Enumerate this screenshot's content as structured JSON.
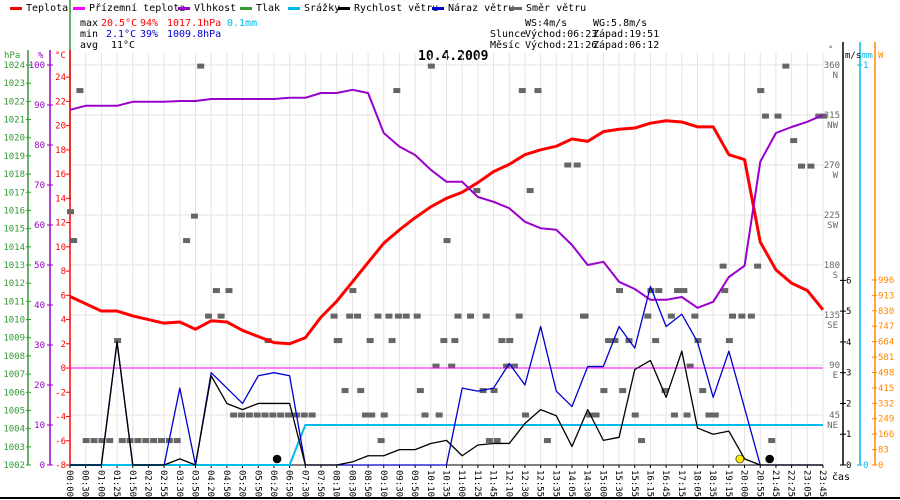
{
  "legend": [
    {
      "label": "Teplota",
      "color": "#ff0000"
    },
    {
      "label": "Přízemní teplota",
      "color": "#ff00ff"
    },
    {
      "label": "Vlhkost",
      "color": "#9900cc"
    },
    {
      "label": "Tlak",
      "color": "#339933"
    },
    {
      "label": "Srážky",
      "color": "#00bbee"
    },
    {
      "label": "Rychlost větru",
      "color": "#000000"
    },
    {
      "label": "Náraz větru",
      "color": "#0000cc"
    },
    {
      "label": "Směr větru",
      "color": "#666666"
    }
  ],
  "stats": {
    "max": {
      "label": "max",
      "temp": "20.5°C",
      "hum": "94%",
      "press": "1017.1hPa",
      "rain": "0.1mm"
    },
    "min": {
      "label": "min",
      "temp": "2.1°C",
      "hum": "39%",
      "press": "1009.8hPa"
    },
    "avg": {
      "label": "avg",
      "temp": "11°C"
    }
  },
  "info": {
    "ws": "WS:4m/s",
    "wg": "WG:5.8m/s",
    "sun_label": "Slunce",
    "sun_rise": "Východ:06:23",
    "sun_set": "Západ:19:51",
    "moon_label": "Měsíc",
    "moon_rise": "Východ:21:26",
    "moon_set": "Západ:06:12"
  },
  "chart_data": {
    "type": "line",
    "title": "10.4.2009",
    "xlabel": "čas",
    "x": [
      "00:00",
      "00:30",
      "01:00",
      "01:25",
      "01:50",
      "02:20",
      "02:55",
      "03:30",
      "03:50",
      "04:20",
      "04:50",
      "05:20",
      "05:50",
      "06:20",
      "06:50",
      "07:30",
      "07:50",
      "08:10",
      "08:30",
      "08:50",
      "09:10",
      "09:30",
      "09:50",
      "10:10",
      "10:35",
      "11:00",
      "11:25",
      "11:45",
      "12:10",
      "12:30",
      "12:55",
      "13:35",
      "14:05",
      "14:30",
      "15:00",
      "15:30",
      "15:55",
      "16:15",
      "16:45",
      "17:15",
      "18:05",
      "18:35",
      "19:15",
      "20:00",
      "20:55",
      "21:45",
      "22:25",
      "23:05",
      "23:45"
    ],
    "axes": {
      "hPa": {
        "unit": "hPa",
        "range": [
          1002,
          1024
        ],
        "ticks": [
          1002,
          1003,
          1004,
          1005,
          1006,
          1007,
          1008,
          1009,
          1010,
          1011,
          1012,
          1013,
          1014,
          1015,
          1016,
          1017,
          1018,
          1019,
          1020,
          1021,
          1022,
          1023,
          1024
        ]
      },
      "pct": {
        "unit": "%",
        "range": [
          0,
          100
        ],
        "ticks": [
          0,
          10,
          20,
          30,
          40,
          50,
          60,
          70,
          80,
          90,
          100
        ]
      },
      "temp": {
        "unit": "°C",
        "range": [
          -8,
          25
        ],
        "ticks": [
          -8,
          -6,
          -4,
          -2,
          0,
          2,
          4,
          6,
          8,
          10,
          12,
          14,
          16,
          18,
          20,
          22,
          24
        ]
      },
      "dir": {
        "unit": "°",
        "range": [
          0,
          360
        ],
        "ticks": [
          {
            "v": 360,
            "l": "N"
          },
          {
            "v": 315,
            "l": "NW"
          },
          {
            "v": 270,
            "l": "W"
          },
          {
            "v": 225,
            "l": "SW"
          },
          {
            "v": 180,
            "l": "S"
          },
          {
            "v": 135,
            "l": "SE"
          },
          {
            "v": 90,
            "l": "E"
          },
          {
            "v": 45,
            "l": "NE"
          }
        ]
      },
      "ms": {
        "unit": "m/s",
        "range": [
          0,
          13
        ],
        "ticks": [
          0,
          1,
          2,
          3,
          4,
          5,
          6
        ]
      },
      "mm": {
        "unit": "mm",
        "range": [
          0,
          1
        ],
        "ticks": [
          0,
          1
        ]
      },
      "W": {
        "unit": "W",
        "range": [
          0,
          2153
        ],
        "ticks": [
          0,
          83,
          166,
          249,
          332,
          415,
          498,
          581,
          664,
          747,
          830,
          913,
          996
        ]
      }
    },
    "series": [
      {
        "name": "Teplota",
        "axis": "temp",
        "color": "#ff0000",
        "width": 3,
        "values": [
          5.9,
          5.3,
          4.7,
          4.7,
          4.3,
          4.0,
          3.7,
          3.8,
          3.2,
          3.9,
          3.8,
          3.1,
          2.6,
          2.1,
          2.0,
          2.5,
          4.2,
          5.5,
          7.1,
          8.7,
          10.3,
          11.4,
          12.4,
          13.3,
          14.0,
          14.5,
          15.3,
          16.2,
          16.8,
          17.6,
          18.0,
          18.3,
          18.9,
          18.7,
          19.5,
          19.7,
          19.8,
          20.2,
          20.4,
          20.3,
          19.9,
          19.9,
          17.6,
          17.2,
          10.4,
          8.1,
          7.0,
          6.4,
          4.8
        ]
      },
      {
        "name": "Přízemní teplota",
        "axis": "temp",
        "color": "#ff00ff",
        "width": 1,
        "values": [
          0,
          0,
          0,
          0,
          0,
          0,
          0,
          0,
          0,
          0,
          0,
          0,
          0,
          0,
          0,
          0,
          0,
          0,
          0,
          0,
          0,
          0,
          0,
          0,
          0,
          0,
          0,
          0,
          0,
          0,
          0,
          0,
          0,
          0,
          0,
          0,
          0,
          0,
          0,
          0,
          0,
          0,
          0,
          0,
          0,
          0,
          0,
          0,
          0
        ]
      },
      {
        "name": "Vlhkost",
        "axis": "pct",
        "color": "#9900cc",
        "width": 2,
        "values": [
          88.8,
          89.8,
          89.8,
          89.8,
          90.8,
          90.8,
          90.8,
          91,
          91,
          91.5,
          91.5,
          91.5,
          91.5,
          91.5,
          91.8,
          91.8,
          93,
          93,
          93.8,
          93,
          83,
          79.6,
          77.5,
          73.8,
          70.8,
          70.8,
          67,
          65.8,
          64.2,
          60.8,
          59.2,
          58.8,
          55,
          50,
          50.8,
          45.8,
          44,
          41.3,
          41.3,
          42,
          39.3,
          40.8,
          47,
          49.8,
          75.8,
          83,
          84.5,
          85.8,
          87.5
        ]
      },
      {
        "name": "Srážky",
        "axis": "mm",
        "color": "#00bbee",
        "width": 2,
        "values": [
          0,
          0,
          0,
          0,
          0,
          0,
          0,
          0,
          0,
          0,
          0,
          0,
          0,
          0,
          0,
          0.1,
          0.1,
          0.1,
          0.1,
          0.1,
          0.1,
          0.1,
          0.1,
          0.1,
          0.1,
          0.1,
          0.1,
          0.1,
          0.1,
          0.1,
          0.1,
          0.1,
          0.1,
          0.1,
          0.1,
          0.1,
          0.1,
          0.1,
          0.1,
          0.1,
          0.1,
          0.1,
          0.1,
          0.1,
          0.1,
          0.1,
          0.1,
          0.1,
          0.1
        ]
      },
      {
        "name": "Náraz větru",
        "axis": "ms",
        "color": "#0000cc",
        "width": 1.3,
        "values": [
          0,
          0,
          0,
          4.0,
          0,
          0,
          0,
          2.5,
          0,
          3.0,
          2.5,
          2.0,
          2.9,
          3.0,
          2.9,
          0,
          0,
          0,
          0,
          0,
          0,
          0,
          0,
          0,
          0,
          2.5,
          2.4,
          2.5,
          3.3,
          2.6,
          4.5,
          2.4,
          1.9,
          3.2,
          3.2,
          4.5,
          3.8,
          5.8,
          4.5,
          4.9,
          4.0,
          2.2,
          3.7,
          1.85,
          0,
          0,
          0,
          0,
          0
        ]
      },
      {
        "name": "Rychlost větru",
        "axis": "ms",
        "color": "#000000",
        "width": 1.3,
        "values": [
          0,
          0,
          0,
          4.0,
          0,
          0,
          0,
          0.2,
          0,
          2.9,
          2.0,
          1.8,
          2.0,
          2.0,
          2.0,
          0,
          0,
          0,
          0.1,
          0.3,
          0.3,
          0.5,
          0.5,
          0.7,
          0.8,
          0.3,
          0.65,
          0.7,
          0.7,
          1.35,
          1.8,
          1.6,
          0.6,
          1.8,
          0.8,
          0.9,
          3.1,
          3.4,
          2.2,
          3.7,
          1.2,
          1.0,
          1.1,
          0.2,
          0,
          0,
          0,
          0,
          0
        ]
      }
    ],
    "wind_direction": {
      "name": "Směr větru",
      "axis": "dir",
      "color": "#666666",
      "points": [
        [
          0,
          228
        ],
        [
          0.2,
          202
        ],
        [
          0.6,
          337
        ],
        [
          1,
          22
        ],
        [
          1.5,
          22
        ],
        [
          2,
          22
        ],
        [
          2.5,
          22
        ],
        [
          3.3,
          22
        ],
        [
          3.8,
          22
        ],
        [
          4.3,
          22
        ],
        [
          4.8,
          22
        ],
        [
          5.3,
          22
        ],
        [
          5.8,
          22
        ],
        [
          6.3,
          22
        ],
        [
          6.8,
          22
        ],
        [
          3,
          112
        ],
        [
          8.3,
          359
        ],
        [
          7.4,
          202
        ],
        [
          7.9,
          224
        ],
        [
          9.3,
          157
        ],
        [
          10.1,
          157
        ],
        [
          8.8,
          134
        ],
        [
          9.6,
          134
        ],
        [
          10.4,
          45
        ],
        [
          10.9,
          45
        ],
        [
          11.4,
          45
        ],
        [
          11.9,
          45
        ],
        [
          12.4,
          45
        ],
        [
          12.9,
          45
        ],
        [
          13.4,
          45
        ],
        [
          13.9,
          45
        ],
        [
          14.4,
          45
        ],
        [
          14.9,
          45
        ],
        [
          15.4,
          45
        ],
        [
          12.6,
          112
        ],
        [
          17,
          112
        ],
        [
          16.8,
          134
        ],
        [
          17.8,
          134
        ],
        [
          18.3,
          134
        ],
        [
          19.6,
          134
        ],
        [
          20.3,
          134
        ],
        [
          20.9,
          134
        ],
        [
          21.4,
          134
        ],
        [
          22.1,
          134
        ],
        [
          24.7,
          134
        ],
        [
          25.5,
          134
        ],
        [
          26.5,
          134
        ],
        [
          28.6,
          134
        ],
        [
          32.7,
          134
        ],
        [
          17.1,
          112
        ],
        [
          19.1,
          112
        ],
        [
          20.5,
          112
        ],
        [
          23.8,
          112
        ],
        [
          24.5,
          112
        ],
        [
          27.5,
          112
        ],
        [
          28,
          112
        ],
        [
          23.3,
          89
        ],
        [
          24.3,
          89
        ],
        [
          27.8,
          89
        ],
        [
          28.3,
          89
        ],
        [
          17.5,
          67
        ],
        [
          18.5,
          67
        ],
        [
          22.3,
          67
        ],
        [
          26.3,
          67
        ],
        [
          27,
          67
        ],
        [
          18.8,
          45
        ],
        [
          19.2,
          45
        ],
        [
          20,
          45
        ],
        [
          22.6,
          45
        ],
        [
          23.5,
          45
        ],
        [
          29,
          45
        ],
        [
          19.8,
          22
        ],
        [
          26.7,
          22
        ],
        [
          27.2,
          22
        ],
        [
          30.4,
          22
        ],
        [
          20.8,
          337
        ],
        [
          23,
          359
        ],
        [
          28.8,
          337
        ],
        [
          29.8,
          337
        ],
        [
          31.7,
          270
        ],
        [
          32.3,
          270
        ],
        [
          29.3,
          247
        ],
        [
          25.9,
          247
        ],
        [
          24,
          202
        ],
        [
          18,
          157
        ],
        [
          45.6,
          359
        ],
        [
          44,
          337
        ],
        [
          44.3,
          314
        ],
        [
          45.1,
          314
        ],
        [
          46.1,
          292
        ],
        [
          46.6,
          269
        ],
        [
          47.2,
          269
        ],
        [
          47.7,
          314
        ],
        [
          48,
          314
        ],
        [
          41.6,
          179
        ],
        [
          43.8,
          179
        ],
        [
          35,
          157
        ],
        [
          37,
          157
        ],
        [
          37.5,
          157
        ],
        [
          38.7,
          157
        ],
        [
          39.1,
          157
        ],
        [
          41.7,
          157
        ],
        [
          32.8,
          134
        ],
        [
          36.8,
          134
        ],
        [
          38.3,
          134
        ],
        [
          39.8,
          134
        ],
        [
          42.2,
          134
        ],
        [
          42.8,
          134
        ],
        [
          43.4,
          134
        ],
        [
          34.3,
          112
        ],
        [
          34.7,
          112
        ],
        [
          35.6,
          112
        ],
        [
          37.3,
          112
        ],
        [
          40,
          112
        ],
        [
          42,
          112
        ],
        [
          39.5,
          89
        ],
        [
          34,
          67
        ],
        [
          35.2,
          67
        ],
        [
          37.9,
          67
        ],
        [
          40.3,
          67
        ],
        [
          33.1,
          45
        ],
        [
          33.5,
          45
        ],
        [
          36,
          45
        ],
        [
          38.5,
          45
        ],
        [
          39.3,
          45
        ],
        [
          40.7,
          45
        ],
        [
          41.1,
          45
        ],
        [
          36.4,
          22
        ],
        [
          44.7,
          22
        ]
      ]
    },
    "markers": [
      {
        "name": "sunset",
        "index": 42.7,
        "color": "#ffee00"
      },
      {
        "name": "moonset",
        "index": 13.2,
        "color": "#000000"
      },
      {
        "name": "moonrise",
        "index": 44.6,
        "color": "#000000"
      }
    ]
  }
}
